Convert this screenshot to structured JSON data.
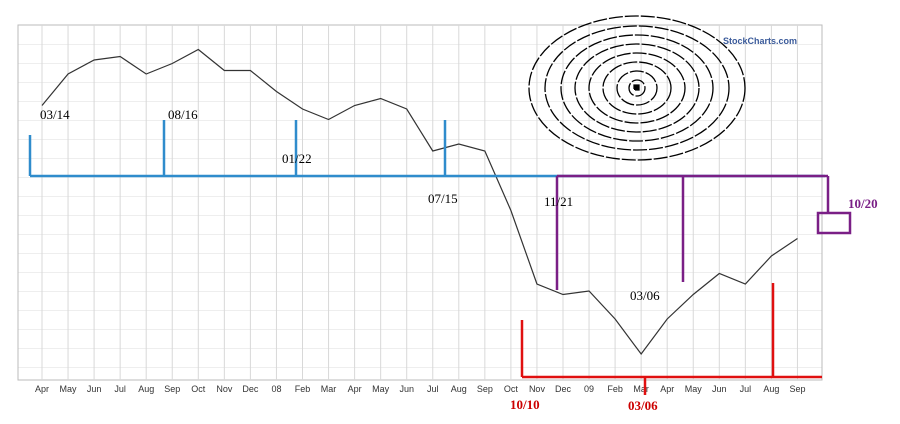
{
  "chart_data": {
    "type": "line",
    "watermark": "StockCharts.com",
    "categories": [
      "Apr",
      "May",
      "Jun",
      "Jul",
      "Aug",
      "Sep",
      "Oct",
      "Nov",
      "Dec",
      "08",
      "Feb",
      "Mar",
      "Apr",
      "May",
      "Jun",
      "Jul",
      "Aug",
      "Sep",
      "Oct",
      "Nov",
      "Dec",
      "09",
      "Feb",
      "Mar",
      "Apr",
      "May",
      "Jun",
      "Jul",
      "Aug",
      "Sep"
    ],
    "values": [
      77,
      86,
      90,
      91,
      86,
      89,
      93,
      87,
      87,
      81,
      76,
      73,
      77,
      79,
      76,
      64,
      66,
      64,
      47,
      26,
      23,
      24,
      16,
      6,
      16,
      23,
      29,
      26,
      34,
      39
    ],
    "color": "#333333",
    "ylim": [
      0,
      100
    ],
    "grid": true,
    "annotations": [
      {
        "text": "03/14",
        "color": "#000000"
      },
      {
        "text": "08/16",
        "color": "#000000"
      },
      {
        "text": "01/22",
        "color": "#000000"
      },
      {
        "text": "07/15",
        "color": "#000000"
      },
      {
        "text": "11/21",
        "color": "#000000"
      },
      {
        "text": "03/06",
        "color": "#000000"
      },
      {
        "text": "10/10",
        "color": "#cc0000"
      },
      {
        "text": "03/06",
        "color": "#cc0000"
      },
      {
        "text": "10/20",
        "color": "#7a1f86"
      }
    ]
  }
}
